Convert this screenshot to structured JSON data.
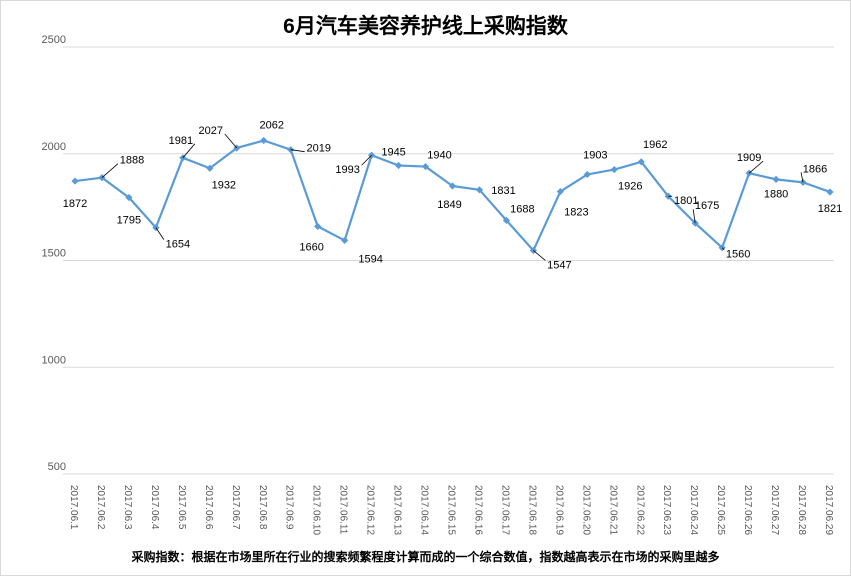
{
  "chart_data": {
    "type": "line",
    "title": "6月汽车美容养护线上采购指数",
    "footnote": "采购指数：根据在市场里所在行业的搜索频繁程度计算而成的一个综合数值，指数越高表示在市场的采购里越多",
    "xlabel": "",
    "ylabel": "",
    "ylim": [
      500,
      2500
    ],
    "yticks": [
      500,
      1000,
      1500,
      2000,
      2500
    ],
    "grid": true,
    "legend": "none",
    "line_color": "#5b9bd5",
    "categories": [
      "2017.06.1",
      "2017.06.2",
      "2017.06.3",
      "2017.06.4",
      "2017.06.5",
      "2017.06.6",
      "2017.06.7",
      "2017.06.8",
      "2017.06.9",
      "2017.06.10",
      "2017.06.11",
      "2017.06.12",
      "2017.06.13",
      "2017.06.14",
      "2017.06.15",
      "2017.06.16",
      "2017.06.17",
      "2017.06.18",
      "2017.06.19",
      "2017.06.20",
      "2017.06.21",
      "2017.06.22",
      "2017.06.23",
      "2017.06.24",
      "2017.06.25",
      "2017.06.26",
      "2017.06.27",
      "2017.06.28",
      "2017.06.29"
    ],
    "values": [
      1872,
      1888,
      1795,
      1654,
      1981,
      1932,
      2027,
      2062,
      2019,
      1660,
      1594,
      1993,
      1945,
      1940,
      1849,
      1831,
      1688,
      1547,
      1823,
      1903,
      1926,
      1962,
      1801,
      1675,
      1560,
      1909,
      1880,
      1866,
      1821
    ]
  }
}
